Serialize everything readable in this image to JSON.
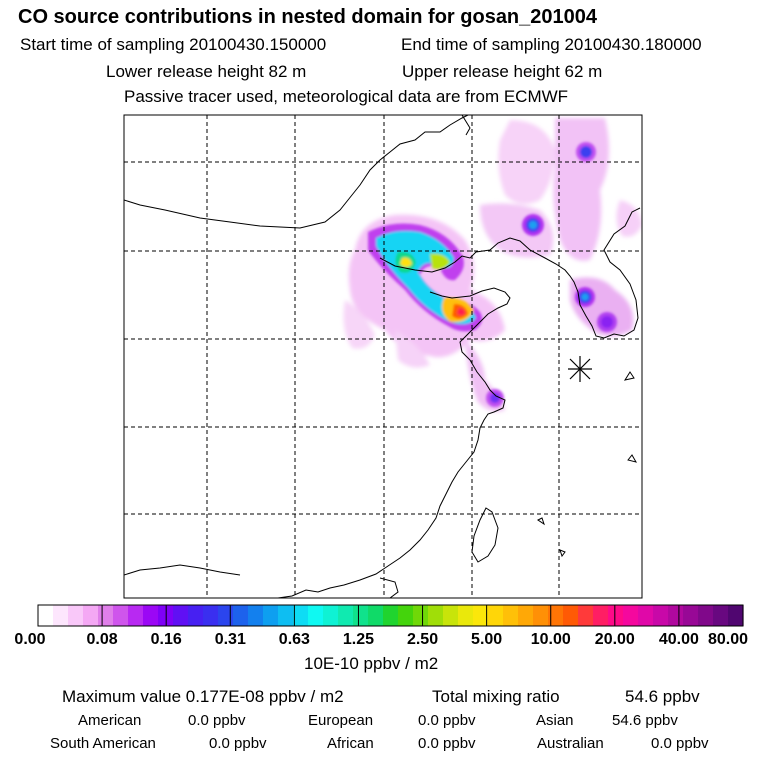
{
  "header": {
    "title": "CO  source contributions in nested domain for gosan_201004",
    "start_label": "Start time of sampling 20100430.150000",
    "end_label": "End time of sampling 20100430.180000",
    "lower_label": "Lower release height   82 m",
    "upper_label": "Upper release height   62 m",
    "note": "Passive tracer used, meteorological data are from ECMWF"
  },
  "map": {
    "receptor_marker": "star-burst-icon",
    "land_color": "#ffffff",
    "coast_color": "#000000"
  },
  "legend": {
    "tick_labels": [
      "0.00",
      "0.08",
      "0.16",
      "0.31",
      "0.63",
      "1.25",
      "2.50",
      "5.00",
      "10.00",
      "20.00",
      "40.00",
      "80.00"
    ],
    "colors": [
      "#ffffff",
      "#fde6fd",
      "#f9c8f9",
      "#f4a8f4",
      "#e07fea",
      "#cf55ec",
      "#b829f2",
      "#9b07f5",
      "#7f00f7",
      "#6010f4",
      "#4720f2",
      "#3a2ff0",
      "#2b45ee",
      "#1d62ec",
      "#1380ee",
      "#0e9ff0",
      "#0ebef2",
      "#0edcf4",
      "#0ff9f2",
      "#0ff2d4",
      "#10eab0",
      "#10e28c",
      "#10da68",
      "#20d42f",
      "#44d40c",
      "#70d808",
      "#a0de08",
      "#c8e40a",
      "#eae80b",
      "#fbe70a",
      "#ffd608",
      "#ffc008",
      "#ffa806",
      "#ff9006",
      "#ff7505",
      "#ff5a05",
      "#ff3a3a",
      "#ff1e64",
      "#ff0a88",
      "#f5089e",
      "#e008a8",
      "#c808a8",
      "#b0089e",
      "#980896",
      "#80088a",
      "#680880",
      "#500670"
    ],
    "unit": "10E-10 ppbv / m2"
  },
  "footer": {
    "max_label": "Maximum value  0.177E-08 ppbv / m2",
    "total_label": "Total mixing ratio",
    "total_value": "54.6 ppbv",
    "rows": [
      {
        "name": "American",
        "value": "0.0 ppbv"
      },
      {
        "name": "European",
        "value": "0.0 ppbv"
      },
      {
        "name": "Asian",
        "value": "54.6 ppbv"
      },
      {
        "name": "South American",
        "value": "0.0 ppbv"
      },
      {
        "name": "African",
        "value": "0.0 ppbv"
      },
      {
        "name": "Australian",
        "value": "0.0 ppbv"
      }
    ]
  }
}
